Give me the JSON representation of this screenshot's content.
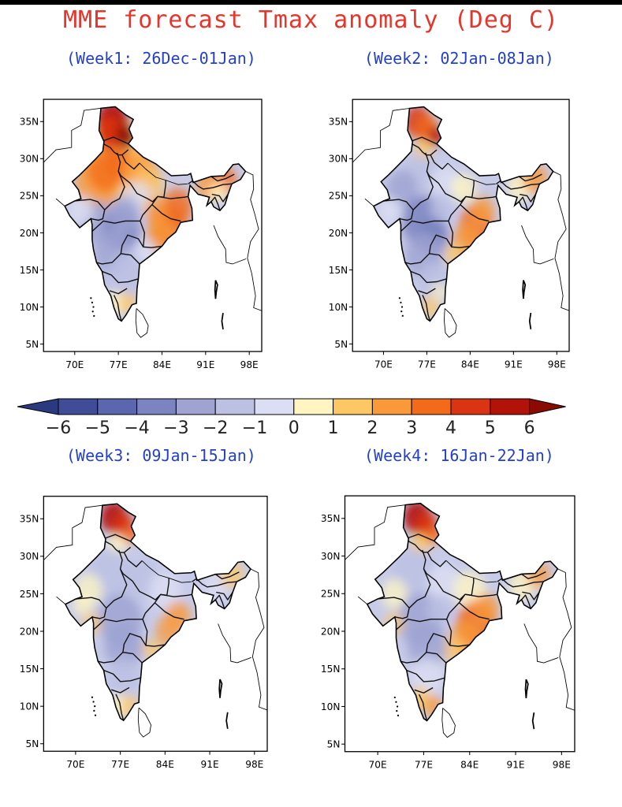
{
  "title": "MME forecast Tmax anomaly (Deg C)",
  "weeks": [
    {
      "label": "(Week1: 26Dec-01Jan)"
    },
    {
      "label": "(Week2: 02Jan-08Jan)"
    },
    {
      "label": "(Week3: 09Jan-15Jan)"
    },
    {
      "label": "(Week4: 16Jan-22Jan)"
    }
  ],
  "lat_ticks": [
    "35N",
    "30N",
    "25N",
    "20N",
    "15N",
    "10N",
    "5N"
  ],
  "lat_values": [
    35,
    30,
    25,
    20,
    15,
    10,
    5
  ],
  "lon_ticks": [
    "70E",
    "77E",
    "84E",
    "91E",
    "98E"
  ],
  "lon_values": [
    70,
    77,
    84,
    91,
    98
  ],
  "map_extent": {
    "lon_min": 65,
    "lon_max": 100,
    "lat_min": 4,
    "lat_max": 38
  },
  "colorbar": {
    "labels": [
      "-6",
      "-5",
      "-4",
      "-3",
      "-2",
      "-1",
      "0",
      "1",
      "2",
      "3",
      "4",
      "5",
      "6"
    ],
    "colors": [
      "#2b3a7e",
      "#3f4c98",
      "#5a66ad",
      "#7b84c0",
      "#9ea3d2",
      "#bcc0e3",
      "#dcdff3",
      "#fff5c2",
      "#fdc864",
      "#f9993a",
      "#f26a1a",
      "#da3412",
      "#b31208",
      "#8a0a04"
    ]
  }
}
